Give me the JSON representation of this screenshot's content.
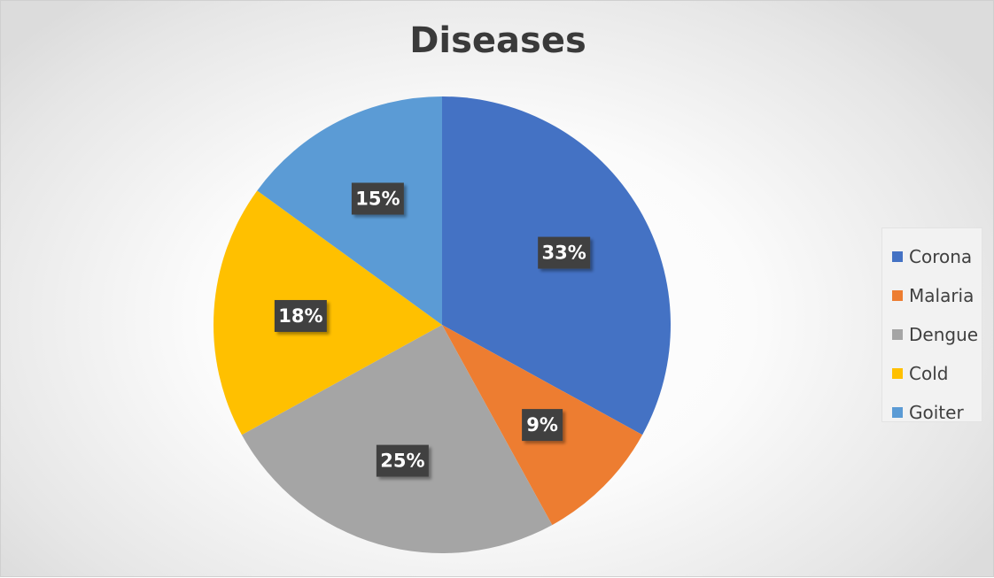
{
  "chart_data": {
    "type": "pie",
    "title": "Diseases",
    "slices": [
      {
        "label": "Corona",
        "value": 33,
        "display": "33%",
        "color": "#4472c4"
      },
      {
        "label": "Malaria",
        "value": 9,
        "display": "9%",
        "color": "#ed7d31"
      },
      {
        "label": "Dengue",
        "value": 25,
        "display": "25%",
        "color": "#a5a5a5"
      },
      {
        "label": "Cold",
        "value": 18,
        "display": "18%",
        "color": "#ffc000"
      },
      {
        "label": "Goiter",
        "value": 15,
        "display": "15%",
        "color": "#5b9bd5"
      }
    ],
    "legend_position": "right"
  }
}
